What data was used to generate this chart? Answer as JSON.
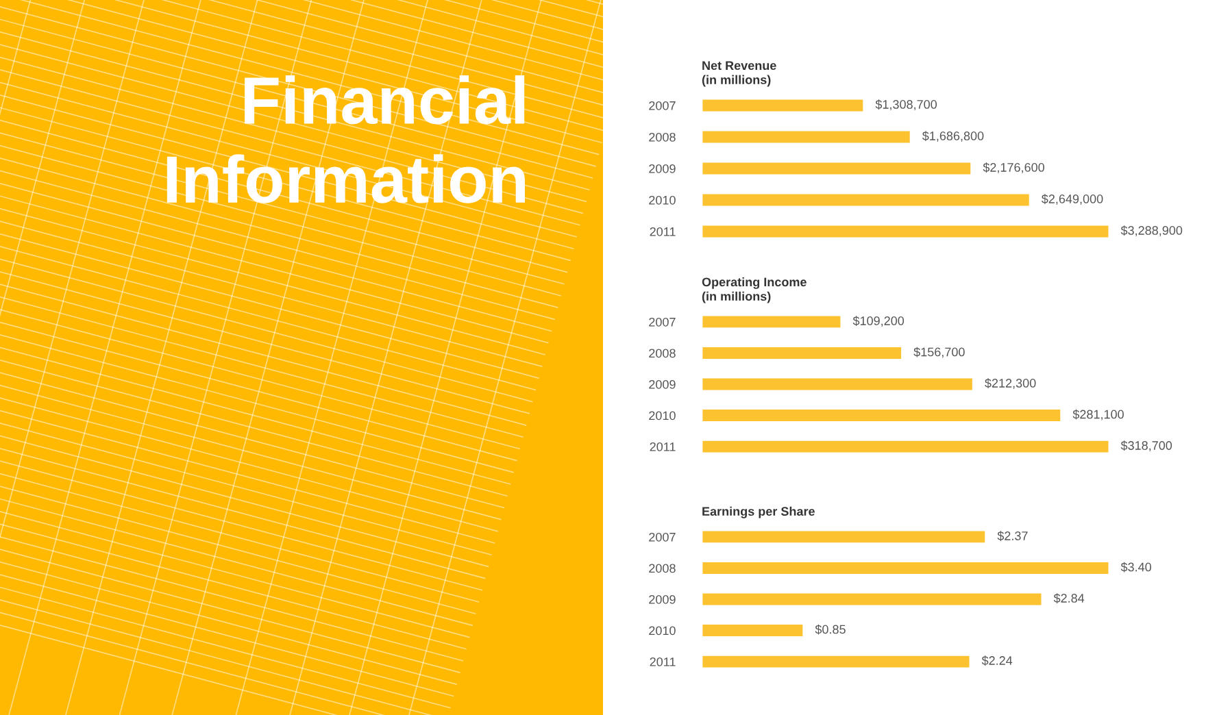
{
  "chart_data": [
    {
      "type": "other",
      "title": "Financial\nInformation"
    },
    {
      "type": "bar",
      "orientation": "horizontal",
      "title": "Net Revenue\n(in millions)",
      "categories": [
        "2007",
        "2008",
        "2009",
        "2010",
        "2011"
      ],
      "values": [
        1308700,
        1686800,
        2176600,
        2649000,
        3288900
      ],
      "value_labels": [
        "$1,308,700",
        "$1,686,800",
        "$2,176,600",
        "$2,649,000",
        "$3,288,900"
      ],
      "color": "#fdc22f",
      "tick_labels": "y"
    },
    {
      "type": "bar",
      "orientation": "horizontal",
      "title": "Operating Income\n(in millions)",
      "categories": [
        "2007",
        "2008",
        "2009",
        "2010",
        "2011"
      ],
      "values": [
        109200,
        156700,
        212300,
        281100,
        318700
      ],
      "value_labels": [
        "$109,200",
        "$156,700",
        "$212,300",
        "$281,100",
        "$318,700"
      ],
      "color": "#fdc22f",
      "tick_labels": "y"
    },
    {
      "type": "bar",
      "orientation": "horizontal",
      "title": "Earnings per Share",
      "categories": [
        "2007",
        "2008",
        "2009",
        "2010",
        "2011"
      ],
      "values": [
        2.37,
        3.4,
        2.84,
        0.85,
        2.24
      ],
      "value_labels": [
        "$2.37",
        "$3.40",
        "$2.84",
        "$0.85",
        "$2.24"
      ],
      "color": "#fdc22f",
      "tick_labels": "y"
    }
  ]
}
